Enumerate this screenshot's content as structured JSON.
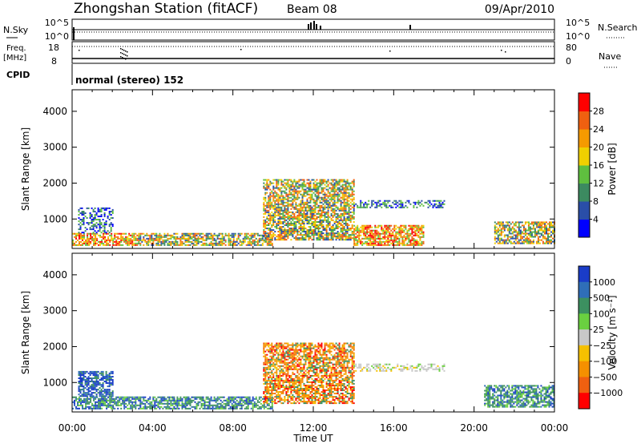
{
  "header": {
    "title": "Zhongshan Station (fitACF)",
    "beam": "Beam 08",
    "date": "09/Apr/2010"
  },
  "strip_panels": {
    "nsky": {
      "label": "N.Sky",
      "right_label": "N.Search",
      "left_ticks": [
        "10^5",
        "10^0"
      ],
      "right_ticks": [
        "10^5",
        "10^0"
      ]
    },
    "freq": {
      "label_line1": "Freq.",
      "label_line2": "[MHz]",
      "left_ticks": [
        "18",
        "8"
      ],
      "right_label": "Nave",
      "right_ticks": [
        "80",
        "0"
      ]
    },
    "cpid": {
      "label": "CPID",
      "value": "normal (stereo) 152"
    }
  },
  "chart_data": [
    {
      "type": "heatmap",
      "name": "power",
      "ylabel": "Slant Range [km]",
      "xlabel": "",
      "x_ticks": [
        "00:00",
        "04:00",
        "08:00",
        "12:00",
        "16:00",
        "20:00",
        "00:00"
      ],
      "x_range_hours": [
        0,
        24
      ],
      "ylim": [
        180,
        4600
      ],
      "y_ticks": [
        1000,
        2000,
        3000,
        4000
      ],
      "colorbar": {
        "label": "Power [dB]",
        "ticks": [
          "4",
          "8",
          "12",
          "16",
          "20",
          "24",
          "28"
        ],
        "colors": [
          "#0000ff",
          "#2a4ea8",
          "#3c8a60",
          "#5fbf3f",
          "#f0d000",
          "#f59a00",
          "#f06010",
          "#ff0000"
        ]
      },
      "features": [
        {
          "desc": "strong near-range echoes",
          "t": [
            0.0,
            3.2
          ],
          "range": [
            250,
            600
          ],
          "level": "high"
        },
        {
          "desc": "near-range band",
          "t": [
            3.2,
            10.0
          ],
          "range": [
            250,
            600
          ],
          "level": "medium"
        },
        {
          "desc": "early-morning patch",
          "t": [
            0.3,
            2.0
          ],
          "range": [
            600,
            1300
          ],
          "level": "low"
        },
        {
          "desc": "mid-day broad echoes",
          "t": [
            9.5,
            14.0
          ],
          "range": [
            400,
            2100
          ],
          "level": "medium"
        },
        {
          "desc": "afternoon band",
          "t": [
            14.0,
            18.5
          ],
          "range": [
            1300,
            1500
          ],
          "level": "low"
        },
        {
          "desc": "late-afternoon near range",
          "t": [
            14.0,
            17.5
          ],
          "range": [
            250,
            800
          ],
          "level": "high"
        },
        {
          "desc": "evening echoes",
          "t": [
            21.0,
            24.0
          ],
          "range": [
            300,
            900
          ],
          "level": "medium"
        }
      ]
    },
    {
      "type": "heatmap",
      "name": "velocity",
      "ylabel": "Slant Range [km]",
      "xlabel": "Time UT",
      "x_ticks": [
        "00:00",
        "04:00",
        "08:00",
        "12:00",
        "16:00",
        "20:00",
        "00:00"
      ],
      "x_range_hours": [
        0,
        24
      ],
      "ylim": [
        180,
        4600
      ],
      "y_ticks": [
        1000,
        2000,
        3000,
        4000
      ],
      "colorbar": {
        "label": "Velocity [m s⁻¹]",
        "ticks": [
          "1000",
          "500",
          "100",
          "25",
          "−25",
          "−100",
          "−500",
          "−1000"
        ],
        "colors": [
          "#1a3cc8",
          "#2f6eb8",
          "#3c9060",
          "#6ad040",
          "#c8c8c8",
          "#f5c000",
          "#f59000",
          "#f06010",
          "#ff0000"
        ]
      },
      "features": [
        {
          "desc": "near-range band",
          "t": [
            0.0,
            10.0
          ],
          "range": [
            250,
            600
          ],
          "level": "positive"
        },
        {
          "desc": "early-morning patch",
          "t": [
            0.3,
            2.0
          ],
          "range": [
            600,
            1300
          ],
          "level": "strong-positive"
        },
        {
          "desc": "mid-day broad echoes",
          "t": [
            9.5,
            14.0
          ],
          "range": [
            400,
            2100
          ],
          "level": "negative"
        },
        {
          "desc": "afternoon band",
          "t": [
            14.0,
            18.5
          ],
          "range": [
            1300,
            1500
          ],
          "level": "near-zero"
        },
        {
          "desc": "evening echoes",
          "t": [
            20.5,
            24.0
          ],
          "range": [
            300,
            900
          ],
          "level": "positive"
        }
      ]
    }
  ]
}
